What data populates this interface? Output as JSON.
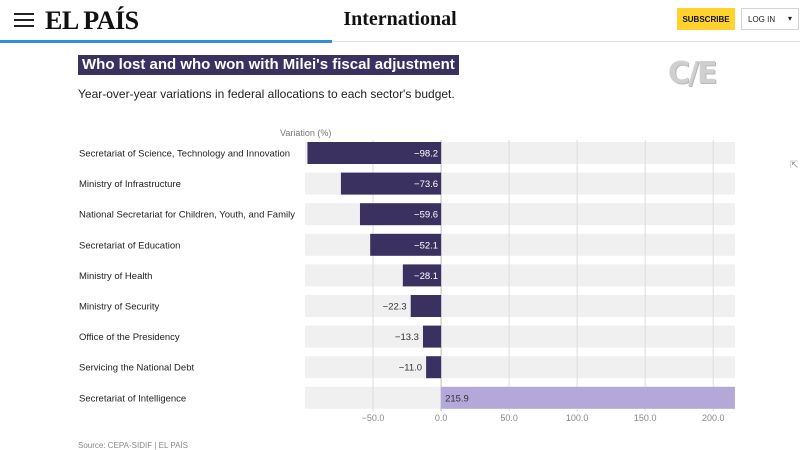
{
  "header": {
    "logo": "EL PAÍS",
    "section": "International",
    "subscribe_label": "SUBSCRIBE",
    "login_label": "LOG IN",
    "accent_color": "#2f8fd8"
  },
  "icons": {
    "menu": "hamburger-icon",
    "login_dropdown": "chevron-down-icon"
  },
  "source": "Source: CEPA-SIDIF | EL PAÍS",
  "watermark": "C/E",
  "chart_data": {
    "type": "bar",
    "orientation": "horizontal",
    "title": "Who lost and who won with Milei's fiscal adjustment",
    "subtitle": "Year-over-year variations in federal allocations to each sector's budget.",
    "xlabel": "Variation (%)",
    "categories": [
      "Secretariat of Science, Technology and Innovation",
      "Ministry of Infrastructure",
      "National Secretariat for Children, Youth, and Family",
      "Secretariat of Education",
      "Ministry of Health",
      "Ministry of Security",
      "Office of the Presidency",
      "Servicing the National Debt",
      "Secretariat of Intelligence"
    ],
    "values": [
      -98.2,
      -73.6,
      -59.6,
      -52.1,
      -28.1,
      -22.3,
      -13.3,
      -11.0,
      215.9
    ],
    "value_labels": [
      "−98.2",
      "−73.6",
      "−59.6",
      "−52.1",
      "−28.1",
      "−22.3",
      "−13.3",
      "−11.0",
      "215.9"
    ],
    "xlim": [
      -100,
      216
    ],
    "xticks": [
      -50,
      0,
      50,
      100,
      150,
      200
    ],
    "xtick_labels": [
      "−50.0",
      "0.0",
      "50.0",
      "100.0",
      "150.0",
      "200.0"
    ],
    "grid": true,
    "colors": {
      "negative": "#3b3160",
      "positive": "#b3a8d8",
      "track": "#f0f0f0"
    }
  }
}
